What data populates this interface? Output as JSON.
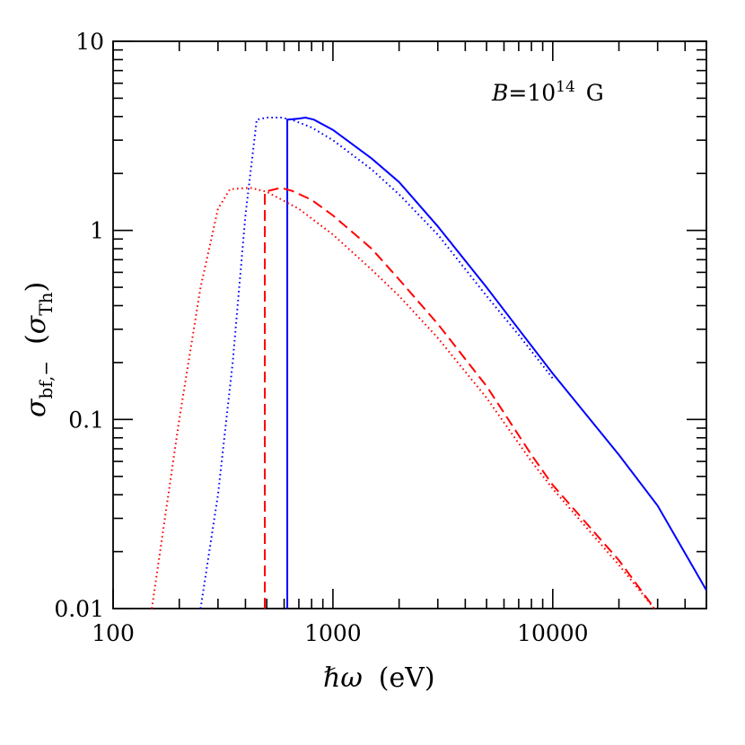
{
  "chart_data": {
    "type": "line",
    "xscale": "log",
    "yscale": "log",
    "xlim": [
      100,
      50000
    ],
    "ylim": [
      0.01,
      10
    ],
    "xlabel": {
      "text": "ℏω",
      "unit": "(eV)"
    },
    "ylabel": {
      "sym": "σ",
      "sub": "bf,−",
      "unit_sym": "σ",
      "unit_sub": "Th"
    },
    "x_ticks": [
      {
        "value": 100,
        "label": "100"
      },
      {
        "value": 1000,
        "label": "1000"
      },
      {
        "value": 10000,
        "label": "10000"
      }
    ],
    "y_ticks": [
      {
        "value": 0.01,
        "label": "0.01"
      },
      {
        "value": 0.1,
        "label": "0.1"
      },
      {
        "value": 1,
        "label": "1"
      },
      {
        "value": 10,
        "label": "10"
      }
    ],
    "annotation": {
      "prefix": "B",
      "eq": "=10",
      "exp": "14",
      "unit": "G"
    },
    "grid": false,
    "series": [
      {
        "color": "#0000ff",
        "style": "solid",
        "points": [
          [
            620,
            0.01
          ],
          [
            620,
            3.85
          ],
          [
            700,
            3.9
          ],
          [
            750,
            3.95
          ],
          [
            820,
            3.85
          ],
          [
            1000,
            3.4
          ],
          [
            1500,
            2.4
          ],
          [
            2000,
            1.8
          ],
          [
            3000,
            1.05
          ],
          [
            5000,
            0.5
          ],
          [
            7000,
            0.3
          ],
          [
            10000,
            0.175
          ],
          [
            20000,
            0.065
          ],
          [
            30000,
            0.035
          ],
          [
            50000,
            0.0125
          ]
        ]
      },
      {
        "color": "#0000ff",
        "style": "dotted",
        "points": [
          [
            250,
            0.01
          ],
          [
            300,
            0.04
          ],
          [
            350,
            0.2
          ],
          [
            400,
            1.2
          ],
          [
            450,
            3.85
          ],
          [
            500,
            3.95
          ],
          [
            580,
            3.95
          ],
          [
            650,
            3.85
          ],
          [
            800,
            3.5
          ],
          [
            1000,
            3.0
          ],
          [
            1500,
            2.1
          ],
          [
            2000,
            1.55
          ],
          [
            3000,
            0.95
          ],
          [
            5000,
            0.45
          ],
          [
            7000,
            0.28
          ],
          [
            10000,
            0.165
          ]
        ]
      },
      {
        "color": "#ff0000",
        "style": "dashed",
        "points": [
          [
            490,
            0.01
          ],
          [
            490,
            1.6
          ],
          [
            580,
            1.68
          ],
          [
            650,
            1.62
          ],
          [
            800,
            1.45
          ],
          [
            1000,
            1.2
          ],
          [
            1500,
            0.8
          ],
          [
            2000,
            0.55
          ],
          [
            3000,
            0.32
          ],
          [
            5000,
            0.15
          ],
          [
            8000,
            0.065
          ],
          [
            10000,
            0.045
          ],
          [
            20000,
            0.018
          ],
          [
            30000,
            0.0095
          ]
        ]
      },
      {
        "color": "#ff0000",
        "style": "dotted",
        "points": [
          [
            150,
            0.01
          ],
          [
            200,
            0.1
          ],
          [
            250,
            0.5
          ],
          [
            300,
            1.3
          ],
          [
            340,
            1.65
          ],
          [
            420,
            1.68
          ],
          [
            500,
            1.6
          ],
          [
            700,
            1.3
          ],
          [
            1000,
            0.95
          ],
          [
            1500,
            0.62
          ],
          [
            2000,
            0.45
          ],
          [
            3000,
            0.27
          ],
          [
            5000,
            0.13
          ],
          [
            8000,
            0.06
          ],
          [
            10000,
            0.043
          ],
          [
            20000,
            0.017
          ],
          [
            30000,
            0.0095
          ]
        ]
      }
    ]
  }
}
